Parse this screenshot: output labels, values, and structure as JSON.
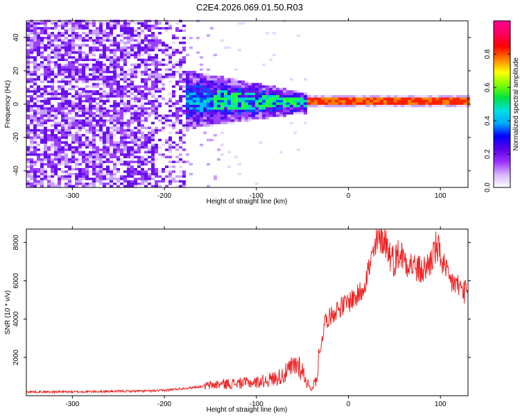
{
  "title": "C2E4.2026.069.01.50.R03",
  "chart_data": [
    {
      "type": "heatmap",
      "name": "spectrogram",
      "xlabel": "Height of straight line (km)",
      "ylabel": "Frequency (Hz)",
      "xlim": [
        -350,
        130
      ],
      "ylim": [
        -50,
        50
      ],
      "xticks": [
        -300,
        -200,
        -100,
        0,
        100
      ],
      "xtick_labels": [
        "-300",
        "-200",
        "-100",
        "0",
        "100"
      ],
      "yticks": [
        -40,
        -20,
        0,
        20,
        40
      ],
      "ytick_labels": [
        "-40",
        "-20",
        "0",
        "20",
        "40"
      ],
      "colorbar": {
        "label": "Normalized spectral amplitude",
        "range": [
          0,
          1
        ],
        "ticks": [
          0.0,
          0.2,
          0.4,
          0.6,
          0.8
        ],
        "tick_labels": [
          "0.0",
          "0.2",
          "0.4",
          "0.6",
          "0.8"
        ],
        "colors": [
          "#ffffff",
          "#d8b4ff",
          "#9b30ff",
          "#5a00e6",
          "#0000ff",
          "#00aaff",
          "#00e0e0",
          "#00e040",
          "#80ff00",
          "#ffff00",
          "#ff8000",
          "#ff0000",
          "#ff0060",
          "#ff0090"
        ]
      },
      "features": {
        "noise_region_x": [
          -350,
          -180
        ],
        "signal_band_center_hz": 0,
        "signal_start_km": -180,
        "strong_line_start_km": -45
      }
    },
    {
      "type": "line",
      "name": "snr",
      "xlabel": "Height of straight line (km)",
      "ylabel": "SNR (10 * v/v)",
      "xlim": [
        -350,
        130
      ],
      "ylim": [
        0,
        8700
      ],
      "xticks": [
        -300,
        -200,
        -100,
        0,
        100
      ],
      "xtick_labels": [
        "-300",
        "-200",
        "-100",
        "0",
        "100"
      ],
      "yticks": [
        2000,
        4000,
        6000,
        8000
      ],
      "ytick_labels": [
        "2000",
        "4000",
        "6000",
        "8000"
      ],
      "color": "#ee2222",
      "series": [
        {
          "name": "SNR",
          "x": [
            -350,
            -300,
            -250,
            -210,
            -200,
            -180,
            -160,
            -140,
            -120,
            -100,
            -90,
            -80,
            -70,
            -60,
            -55,
            -50,
            -45,
            -40,
            -35,
            -30,
            -25,
            -20,
            -15,
            -10,
            -5,
            0,
            5,
            10,
            15,
            20,
            25,
            30,
            35,
            40,
            45,
            50,
            55,
            60,
            65,
            70,
            75,
            80,
            85,
            90,
            95,
            100,
            105,
            110,
            115,
            120,
            125,
            130
          ],
          "y": [
            200,
            200,
            230,
            250,
            280,
            380,
            480,
            600,
            650,
            700,
            800,
            900,
            1100,
            1500,
            1700,
            1300,
            700,
            300,
            900,
            2600,
            4000,
            4100,
            4400,
            4600,
            4700,
            4900,
            5100,
            5200,
            5600,
            6300,
            7000,
            7800,
            8400,
            8100,
            7400,
            7000,
            7500,
            7200,
            7000,
            6800,
            6600,
            6500,
            6700,
            7100,
            7700,
            7400,
            6500,
            6000,
            5900,
            5700,
            5500,
            5300
          ]
        }
      ]
    }
  ]
}
